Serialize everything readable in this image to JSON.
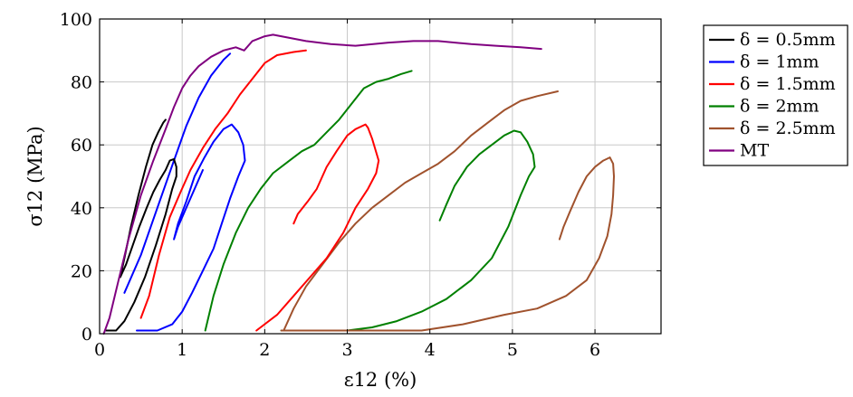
{
  "chart_data": {
    "type": "line",
    "title": "",
    "xlabel": "ε12 (%)",
    "ylabel": "σ12 (MPa)",
    "xlim": [
      0,
      6.8
    ],
    "ylim": [
      0,
      100
    ],
    "xticks": [
      0,
      1,
      2,
      3,
      4,
      5,
      6
    ],
    "yticks": [
      0,
      20,
      40,
      60,
      80,
      100
    ],
    "grid": true,
    "legend_position": "outside-right",
    "series": [
      {
        "name": "δ = 0.5mm",
        "color": "#000000",
        "points": [
          [
            0.08,
            1
          ],
          [
            0.2,
            1
          ],
          [
            0.3,
            4
          ],
          [
            0.42,
            10
          ],
          [
            0.55,
            18
          ],
          [
            0.68,
            28
          ],
          [
            0.8,
            38
          ],
          [
            0.88,
            46
          ],
          [
            0.93,
            50
          ],
          [
            0.93,
            53
          ],
          [
            0.9,
            55.5
          ],
          [
            0.85,
            55
          ],
          [
            0.8,
            52
          ],
          [
            0.73,
            49
          ],
          [
            0.65,
            45
          ],
          [
            0.57,
            40
          ],
          [
            0.48,
            34
          ],
          [
            0.4,
            28
          ],
          [
            0.32,
            22
          ],
          [
            0.25,
            18
          ],
          [
            0.3,
            24
          ],
          [
            0.38,
            34
          ],
          [
            0.47,
            44
          ],
          [
            0.56,
            53
          ],
          [
            0.64,
            60
          ],
          [
            0.71,
            64
          ],
          [
            0.77,
            67
          ],
          [
            0.8,
            68
          ]
        ]
      },
      {
        "name": "δ = 1mm",
        "color": "#0000ff",
        "points": [
          [
            0.45,
            1
          ],
          [
            0.7,
            1
          ],
          [
            0.88,
            3
          ],
          [
            1.0,
            7
          ],
          [
            1.12,
            13
          ],
          [
            1.25,
            20
          ],
          [
            1.38,
            27
          ],
          [
            1.48,
            35
          ],
          [
            1.58,
            43
          ],
          [
            1.68,
            50
          ],
          [
            1.76,
            55
          ],
          [
            1.74,
            60
          ],
          [
            1.68,
            64
          ],
          [
            1.6,
            66.5
          ],
          [
            1.5,
            65
          ],
          [
            1.38,
            61
          ],
          [
            1.27,
            56
          ],
          [
            1.15,
            50
          ],
          [
            1.05,
            42
          ],
          [
            0.95,
            35
          ],
          [
            0.92,
            32
          ],
          [
            0.9,
            30
          ],
          [
            0.95,
            34
          ],
          [
            1.05,
            40
          ],
          [
            1.15,
            46
          ],
          [
            1.25,
            52
          ]
        ]
      },
      {
        "name": "δ = 1.5mm",
        "color": "#ff0000",
        "points": [
          [
            1.9,
            1
          ],
          [
            2.15,
            6
          ],
          [
            2.35,
            12
          ],
          [
            2.55,
            18
          ],
          [
            2.75,
            24
          ],
          [
            2.95,
            32
          ],
          [
            3.1,
            40
          ],
          [
            3.25,
            46
          ],
          [
            3.35,
            51
          ],
          [
            3.38,
            55
          ],
          [
            3.3,
            62
          ],
          [
            3.25,
            65.5
          ],
          [
            3.22,
            66.5
          ],
          [
            3.1,
            65
          ],
          [
            3.0,
            63
          ],
          [
            2.87,
            58
          ],
          [
            2.75,
            53
          ],
          [
            2.63,
            46
          ],
          [
            2.52,
            42
          ],
          [
            2.4,
            38
          ],
          [
            2.35,
            35
          ]
        ]
      },
      {
        "name": "δ = 2mm",
        "color": "#008000",
        "points": [
          [
            2.2,
            1
          ],
          [
            3.0,
            1
          ],
          [
            3.3,
            2
          ],
          [
            3.6,
            4
          ],
          [
            3.9,
            7
          ],
          [
            4.2,
            11
          ],
          [
            4.5,
            17
          ],
          [
            4.75,
            24
          ],
          [
            4.95,
            34
          ],
          [
            5.1,
            44
          ],
          [
            5.2,
            50
          ],
          [
            5.27,
            53
          ],
          [
            5.25,
            57
          ],
          [
            5.18,
            61
          ],
          [
            5.1,
            64
          ],
          [
            5.02,
            64.5
          ],
          [
            4.9,
            63
          ],
          [
            4.75,
            60
          ],
          [
            4.6,
            57
          ],
          [
            4.45,
            53
          ],
          [
            4.3,
            47
          ],
          [
            4.2,
            41
          ],
          [
            4.12,
            36
          ]
        ]
      },
      {
        "name": "δ = 2.5mm",
        "color": "#a0522d",
        "points": [
          [
            2.2,
            1
          ],
          [
            3.9,
            1
          ],
          [
            4.4,
            3
          ],
          [
            4.9,
            6
          ],
          [
            5.3,
            8
          ],
          [
            5.65,
            12
          ],
          [
            5.9,
            17
          ],
          [
            6.05,
            24
          ],
          [
            6.15,
            31
          ],
          [
            6.2,
            38
          ],
          [
            6.22,
            44
          ],
          [
            6.23,
            50
          ],
          [
            6.22,
            54
          ],
          [
            6.18,
            56
          ],
          [
            6.1,
            55
          ],
          [
            6.0,
            53
          ],
          [
            5.9,
            50
          ],
          [
            5.8,
            45
          ],
          [
            5.7,
            39
          ],
          [
            5.62,
            34
          ],
          [
            5.57,
            30
          ]
        ]
      },
      {
        "name": "MT",
        "color": "#800080",
        "points": [
          [
            0.05,
            0
          ],
          [
            0.12,
            5
          ],
          [
            0.22,
            16
          ],
          [
            0.35,
            30
          ],
          [
            0.5,
            44
          ],
          [
            0.65,
            55
          ],
          [
            0.8,
            65
          ],
          [
            0.9,
            72
          ],
          [
            1.0,
            78
          ],
          [
            1.1,
            82
          ],
          [
            1.2,
            85
          ],
          [
            1.35,
            88
          ],
          [
            1.5,
            90
          ],
          [
            1.65,
            91
          ],
          [
            1.75,
            90
          ],
          [
            1.85,
            93
          ],
          [
            2.0,
            94.5
          ],
          [
            2.1,
            95
          ],
          [
            2.3,
            94
          ],
          [
            2.5,
            93
          ],
          [
            2.8,
            92
          ],
          [
            3.1,
            91.5
          ],
          [
            3.5,
            92.5
          ],
          [
            3.8,
            93
          ],
          [
            4.1,
            93
          ],
          [
            4.5,
            92
          ],
          [
            4.8,
            91.5
          ],
          [
            5.1,
            91
          ],
          [
            5.35,
            90.5
          ]
        ]
      }
    ]
  },
  "extra_segments": [
    {
      "series": "δ = 1mm",
      "color": "#0000ff",
      "points": [
        [
          0.3,
          13
        ],
        [
          0.5,
          25
        ],
        [
          0.7,
          40
        ],
        [
          0.9,
          55
        ],
        [
          1.05,
          66
        ],
        [
          1.2,
          75
        ],
        [
          1.35,
          82
        ],
        [
          1.5,
          87
        ],
        [
          1.58,
          89
        ]
      ]
    },
    {
      "series": "δ = 1.5mm",
      "color": "#ff0000",
      "points": [
        [
          0.5,
          5
        ],
        [
          0.6,
          12
        ],
        [
          0.72,
          25
        ],
        [
          0.85,
          37
        ],
        [
          0.98,
          45
        ],
        [
          1.1,
          52
        ],
        [
          1.25,
          59
        ],
        [
          1.4,
          65
        ],
        [
          1.55,
          70
        ],
        [
          1.7,
          76
        ],
        [
          1.85,
          81
        ],
        [
          2.0,
          86
        ],
        [
          2.15,
          88.5
        ],
        [
          2.35,
          89.5
        ],
        [
          2.5,
          90
        ]
      ]
    },
    {
      "series": "δ = 2mm",
      "color": "#008000",
      "points": [
        [
          1.28,
          1
        ],
        [
          1.38,
          12
        ],
        [
          1.5,
          22
        ],
        [
          1.65,
          32
        ],
        [
          1.8,
          40
        ],
        [
          1.95,
          46
        ],
        [
          2.1,
          51
        ],
        [
          2.3,
          55
        ],
        [
          2.45,
          58
        ],
        [
          2.6,
          60
        ],
        [
          2.75,
          64
        ],
        [
          2.9,
          68
        ],
        [
          3.05,
          73
        ],
        [
          3.2,
          78
        ],
        [
          3.35,
          80
        ],
        [
          3.5,
          81
        ],
        [
          3.65,
          82.5
        ],
        [
          3.78,
          83.5
        ]
      ]
    },
    {
      "series": "δ = 2.5mm",
      "color": "#a0522d",
      "points": [
        [
          2.23,
          1
        ],
        [
          2.35,
          8
        ],
        [
          2.5,
          15
        ],
        [
          2.7,
          22
        ],
        [
          2.9,
          29
        ],
        [
          3.1,
          35
        ],
        [
          3.3,
          40
        ],
        [
          3.5,
          44
        ],
        [
          3.7,
          48
        ],
        [
          3.9,
          51
        ],
        [
          4.1,
          54
        ],
        [
          4.3,
          58
        ],
        [
          4.5,
          63
        ],
        [
          4.7,
          67
        ],
        [
          4.9,
          71
        ],
        [
          5.1,
          74
        ],
        [
          5.3,
          75.5
        ],
        [
          5.55,
          77
        ]
      ]
    }
  ]
}
